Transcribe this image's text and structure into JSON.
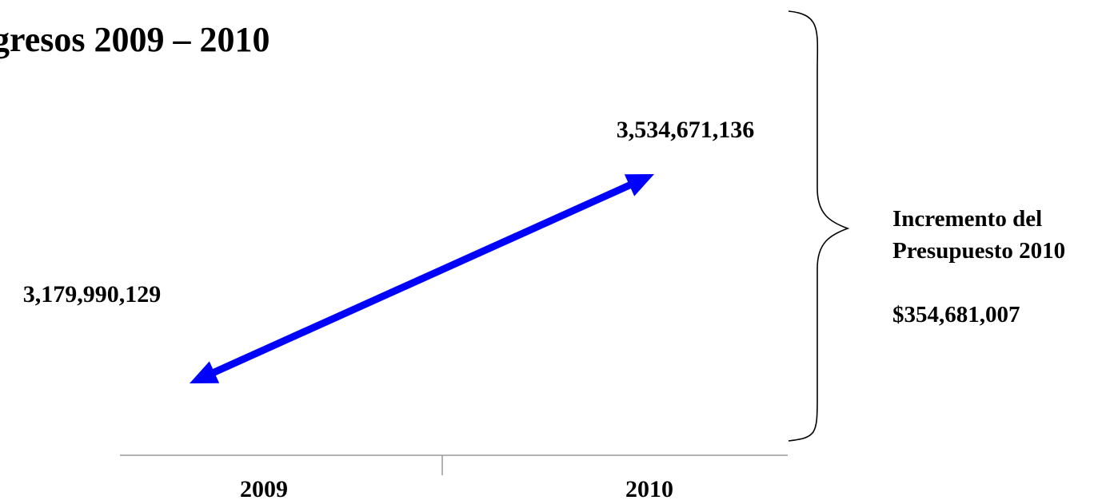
{
  "chart_data": {
    "type": "line",
    "title": "gresos 2009 – 2010",
    "categories": [
      "2009",
      "2010"
    ],
    "values": [
      3179990129,
      3534671136
    ],
    "value_labels": [
      "3,179,990,129",
      "3,534,671,136"
    ],
    "line_color": "#0000ff",
    "arrowheads": "both-ends",
    "grid": false,
    "bracket_note": {
      "line1": "Incremento del",
      "line2": "Presupuesto 2010",
      "amount": "$354,681,007"
    }
  }
}
